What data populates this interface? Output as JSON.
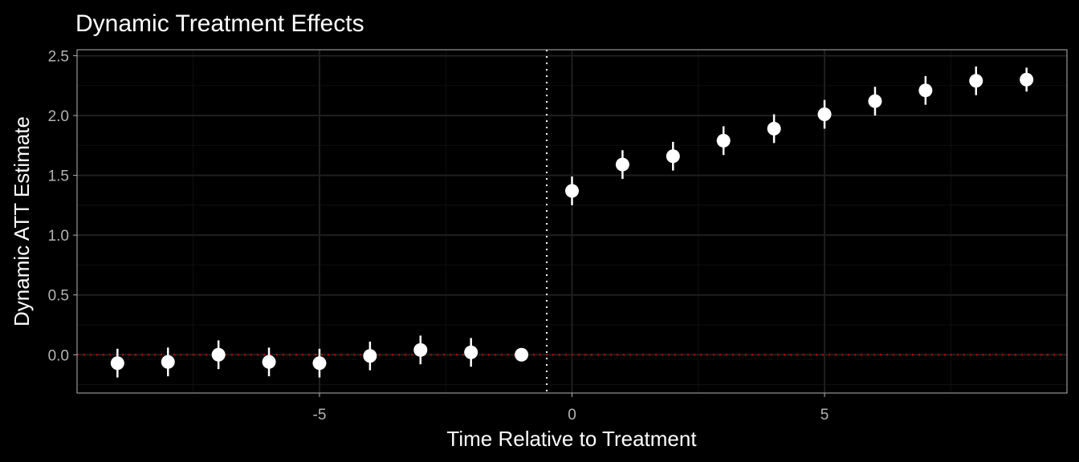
{
  "chart_data": {
    "type": "scatter",
    "title": "Dynamic Treatment Effects",
    "xlabel": "Time Relative to Treatment",
    "ylabel": "Dynamic ATT Estimate",
    "xlim": [
      -9.8,
      9.8
    ],
    "ylim": [
      -0.32,
      2.55
    ],
    "x_ticks": [
      {
        "value": -5,
        "label": "-5"
      },
      {
        "value": 0,
        "label": "0"
      },
      {
        "value": 5,
        "label": "5"
      }
    ],
    "y_ticks": [
      {
        "value": 0.0,
        "label": "0.0"
      },
      {
        "value": 0.5,
        "label": "0.5"
      },
      {
        "value": 1.0,
        "label": "1.0"
      },
      {
        "value": 1.5,
        "label": "1.5"
      },
      {
        "value": 2.0,
        "label": "2.0"
      },
      {
        "value": 2.5,
        "label": "2.5"
      }
    ],
    "x_minor_ticks": [
      -7.5,
      -2.5,
      2.5,
      7.5
    ],
    "y_minor_ticks": [
      -0.25,
      0.25,
      0.75,
      1.25,
      1.75,
      2.25
    ],
    "grid": true,
    "reference_lines": {
      "horizontal_zero": {
        "value": 0,
        "style": "dotted",
        "color": "#cc0000"
      },
      "vertical_treatment": {
        "value": -0.5,
        "style": "dotted",
        "color": "#ffffff"
      }
    },
    "points": [
      {
        "x": -9,
        "y": -0.07,
        "lo": -0.19,
        "hi": 0.05
      },
      {
        "x": -8,
        "y": -0.06,
        "lo": -0.18,
        "hi": 0.06
      },
      {
        "x": -7,
        "y": 0.0,
        "lo": -0.12,
        "hi": 0.12
      },
      {
        "x": -6,
        "y": -0.06,
        "lo": -0.18,
        "hi": 0.06
      },
      {
        "x": -5,
        "y": -0.07,
        "lo": -0.19,
        "hi": 0.05
      },
      {
        "x": -4,
        "y": -0.01,
        "lo": -0.13,
        "hi": 0.11
      },
      {
        "x": -3,
        "y": 0.04,
        "lo": -0.08,
        "hi": 0.16
      },
      {
        "x": -2,
        "y": 0.02,
        "lo": -0.1,
        "hi": 0.14
      },
      {
        "x": -1,
        "y": 0.0,
        "lo": 0.0,
        "hi": 0.0
      },
      {
        "x": 0,
        "y": 1.37,
        "lo": 1.25,
        "hi": 1.49
      },
      {
        "x": 1,
        "y": 1.59,
        "lo": 1.47,
        "hi": 1.71
      },
      {
        "x": 2,
        "y": 1.66,
        "lo": 1.54,
        "hi": 1.78
      },
      {
        "x": 3,
        "y": 1.79,
        "lo": 1.67,
        "hi": 1.91
      },
      {
        "x": 4,
        "y": 1.89,
        "lo": 1.77,
        "hi": 2.01
      },
      {
        "x": 5,
        "y": 2.01,
        "lo": 1.89,
        "hi": 2.13
      },
      {
        "x": 6,
        "y": 2.12,
        "lo": 2.0,
        "hi": 2.24
      },
      {
        "x": 7,
        "y": 2.21,
        "lo": 2.09,
        "hi": 2.33
      },
      {
        "x": 8,
        "y": 2.29,
        "lo": 2.17,
        "hi": 2.41
      },
      {
        "x": 9,
        "y": 2.3,
        "lo": 2.2,
        "hi": 2.4
      }
    ],
    "colors": {
      "background": "#000000",
      "panel_border": "#b3b3b3",
      "grid_major": "#1f1f1f",
      "grid_minor": "#111111",
      "point": "#ffffff",
      "errorbar": "#ffffff",
      "tick_label": "#b3b3b3",
      "text": "#ffffff"
    }
  }
}
